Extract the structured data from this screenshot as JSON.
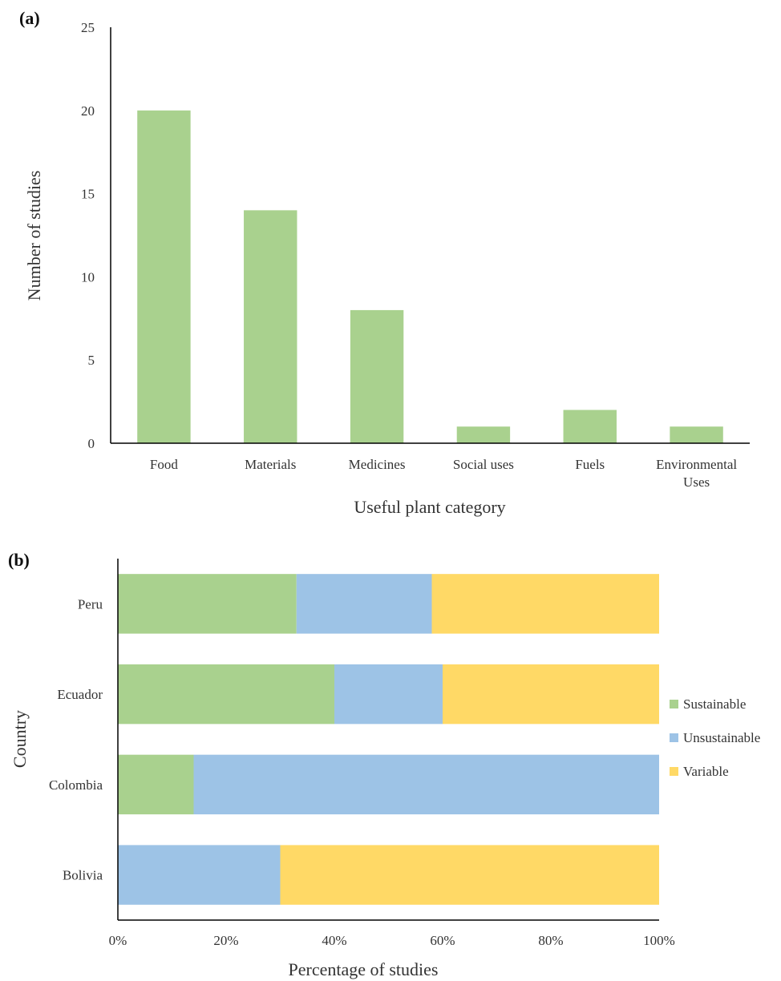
{
  "chart_data": [
    {
      "panel_label": "(a)",
      "type": "bar",
      "categories": [
        [
          "Food"
        ],
        [
          "Materials"
        ],
        [
          "Medicines"
        ],
        [
          "Social uses"
        ],
        [
          "Fuels"
        ],
        [
          "Environmental",
          "Uses"
        ]
      ],
      "values": [
        20,
        14,
        8,
        1,
        2,
        1
      ],
      "color": "#a9d18e",
      "xlabel": "Useful plant category",
      "ylabel": "Number of studies",
      "ylim": [
        0,
        25
      ],
      "yticks": [
        "0",
        "5",
        "10",
        "15",
        "20",
        "25"
      ],
      "grid": false
    },
    {
      "panel_label": "(b)",
      "type": "bar",
      "orientation": "horizontal",
      "stacked": "percent",
      "categories": [
        "Peru",
        "Ecuador",
        "Colombia",
        "Bolivia"
      ],
      "series": [
        {
          "name": "Sustainable",
          "color": "#a9d18e",
          "values": [
            33,
            40,
            14,
            0
          ]
        },
        {
          "name": "Unsustainable",
          "color": "#9dc3e6",
          "values": [
            25,
            20,
            86,
            30
          ]
        },
        {
          "name": "Variable",
          "color": "#ffd966",
          "values": [
            42,
            40,
            0,
            70
          ]
        }
      ],
      "xlabel": "Percentage of studies",
      "ylabel": "Country",
      "xlim": [
        0,
        100
      ],
      "xticks": [
        "0%",
        "20%",
        "40%",
        "60%",
        "80%",
        "100%"
      ],
      "legend": "right",
      "grid": false
    }
  ]
}
